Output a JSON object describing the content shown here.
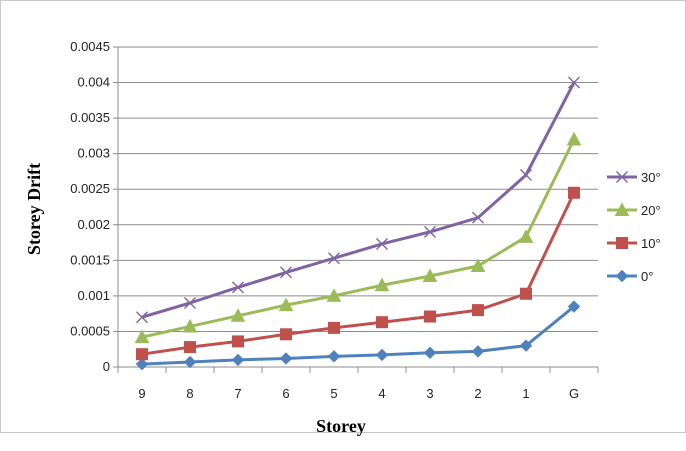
{
  "chart_data": {
    "type": "line",
    "title": "",
    "xlabel": "Storey",
    "ylabel": "Storey Drift",
    "categories": [
      "9",
      "8",
      "7",
      "6",
      "5",
      "4",
      "3",
      "2",
      "1",
      "G"
    ],
    "ylim": [
      0,
      0.0045
    ],
    "yticks": [
      "0",
      "0.0005",
      "0.001",
      "0.0015",
      "0.002",
      "0.0025",
      "0.003",
      "0.0035",
      "0.004",
      "0.0045"
    ],
    "grid": true,
    "legend_position": "right",
    "series": [
      {
        "name": "30°",
        "marker": "x",
        "color": "#8064a2",
        "values": [
          0.0007,
          0.0009,
          0.00112,
          0.00133,
          0.00153,
          0.00173,
          0.0019,
          0.0021,
          0.0027,
          0.004
        ]
      },
      {
        "name": "20°",
        "marker": "triangle",
        "color": "#9bbb59",
        "values": [
          0.00042,
          0.00057,
          0.00072,
          0.00087,
          0.001,
          0.00115,
          0.00128,
          0.00142,
          0.00183,
          0.0032
        ]
      },
      {
        "name": "10°",
        "marker": "square",
        "color": "#c0504d",
        "values": [
          0.00018,
          0.00028,
          0.00036,
          0.00046,
          0.00055,
          0.00063,
          0.00071,
          0.0008,
          0.00103,
          0.00245
        ]
      },
      {
        "name": "0°",
        "marker": "diamond",
        "color": "#4f81bd",
        "values": [
          4e-05,
          7e-05,
          0.0001,
          0.00012,
          0.00015,
          0.00017,
          0.0002,
          0.00022,
          0.0003,
          0.00085
        ]
      }
    ]
  }
}
